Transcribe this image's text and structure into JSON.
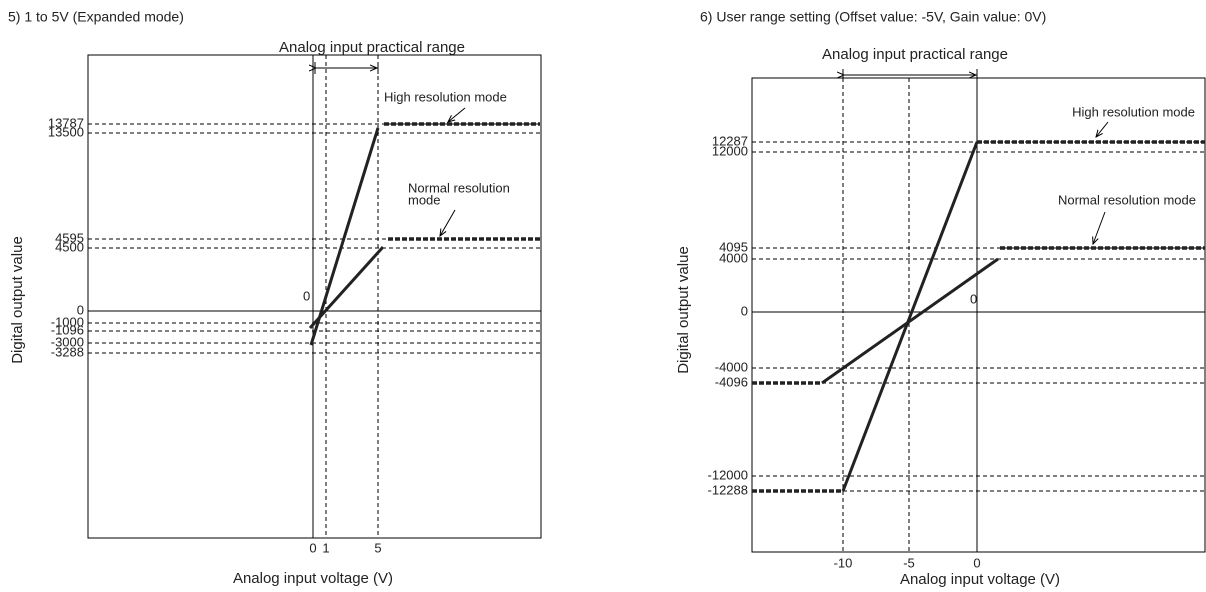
{
  "charts": [
    {
      "title": "5) 1 to 5V (Expanded mode)",
      "practical_range": "Analog input practical range",
      "y_axis_label": "Digital output value",
      "x_axis_label": "Analog input voltage (V)",
      "origin_label": "0",
      "y_ticks": [
        "13787",
        "13500",
        "4595",
        "4500",
        "0",
        "-1000",
        "-1096",
        "-3000",
        "-3288"
      ],
      "x_ticks": [
        "0",
        "1",
        "5"
      ],
      "annotations": [
        "High resolution mode",
        "Normal resolution",
        "mode"
      ]
    },
    {
      "title": "6) User range setting (Offset value: -5V, Gain value: 0V)",
      "practical_range": "Analog input practical range",
      "y_axis_label": "Digital output value",
      "x_axis_label": "Analog input voltage (V)",
      "origin_label": "0",
      "y_ticks": [
        "12287",
        "12000",
        "4095",
        "4000",
        "0",
        "-4000",
        "-4096",
        "-12000",
        "-12288"
      ],
      "x_ticks": [
        "-10",
        "-5",
        "0"
      ],
      "annotations": [
        "High resolution mode",
        "Normal resolution mode"
      ]
    }
  ]
}
